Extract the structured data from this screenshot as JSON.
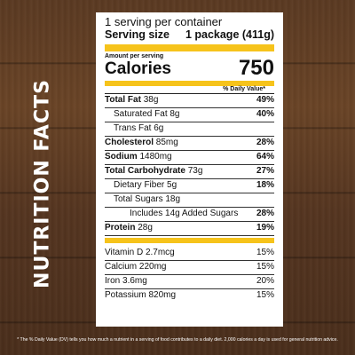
{
  "side_title": "NUTRITION FACTS",
  "panel": {
    "servings_line": "1 serving per container",
    "serving_size_label": "Serving size",
    "serving_size_value": "1 package (411g)",
    "amount_per_serving": "Amount per serving",
    "calories_label": "Calories",
    "calories_value": "750",
    "daily_value_header": "% Daily Value*",
    "nutrients": [
      {
        "label": "Total Fat",
        "amount": "38g",
        "dv": "49%",
        "bold": true,
        "indent": 0
      },
      {
        "label": "Saturated Fat",
        "amount": "8g",
        "dv": "40%",
        "bold": false,
        "indent": 1
      },
      {
        "label": "Trans Fat",
        "amount": "6g",
        "dv": "",
        "bold": false,
        "indent": 1
      },
      {
        "label": "Cholesterol",
        "amount": "85mg",
        "dv": "28%",
        "bold": true,
        "indent": 0
      },
      {
        "label": "Sodium",
        "amount": "1480mg",
        "dv": "64%",
        "bold": true,
        "indent": 0
      },
      {
        "label": "Total Carbohydrate",
        "amount": "73g",
        "dv": "27%",
        "bold": true,
        "indent": 0
      },
      {
        "label": "Dietary Fiber",
        "amount": "5g",
        "dv": "18%",
        "bold": false,
        "indent": 1
      },
      {
        "label": "Total Sugars",
        "amount": "18g",
        "dv": "",
        "bold": false,
        "indent": 1
      },
      {
        "label": "Includes 14g Added Sugars",
        "amount": "",
        "dv": "28%",
        "bold": false,
        "indent": 3
      },
      {
        "label": "Protein",
        "amount": "28g",
        "dv": "19%",
        "bold": true,
        "indent": 0
      }
    ],
    "minerals": [
      {
        "label": "Vitamin D",
        "amount": "2.7mcg",
        "dv": "15%"
      },
      {
        "label": "Calcium",
        "amount": "220mg",
        "dv": "15%"
      },
      {
        "label": "Iron",
        "amount": "3.6mg",
        "dv": "20%"
      },
      {
        "label": "Potassium",
        "amount": "820mg",
        "dv": "15%"
      }
    ]
  },
  "footnote": "* The % Daily Value (DV) tells you how much a nutrient in a serving of food contributes to a daily diet. 2,000 calories a day is used for general nutrition advice.",
  "colors": {
    "accent_bar": "#f6c31b",
    "wood": "#5b3a22"
  }
}
